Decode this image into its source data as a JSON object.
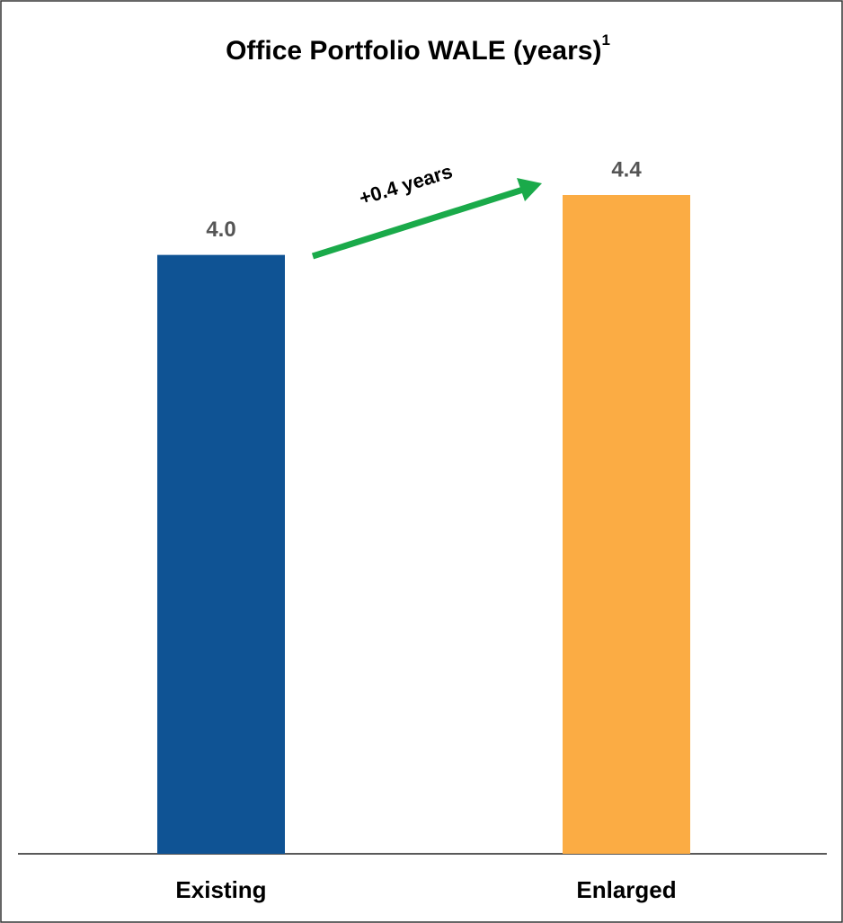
{
  "chart_data": {
    "type": "bar",
    "title": "Office Portfolio WALE (years)",
    "title_superscript": "1",
    "categories": [
      "Existing",
      "Enlarged"
    ],
    "values": [
      4.0,
      4.4
    ],
    "value_labels": [
      "4.0",
      "4.4"
    ],
    "colors": [
      "#0f5394",
      "#fbac44"
    ],
    "annotation": "+0.4 years",
    "annotation_color": "#1aaa4a"
  }
}
